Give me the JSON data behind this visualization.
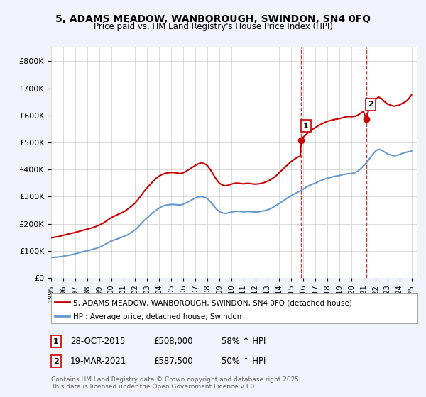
{
  "title_line1": "5, ADAMS MEADOW, WANBOROUGH, SWINDON, SN4 0FQ",
  "title_line2": "Price paid vs. HM Land Registry's House Price Index (HPI)",
  "ylabel": "",
  "background_color": "#f0f4fa",
  "plot_bg_color": "#ffffff",
  "red_color": "#cc0000",
  "blue_color": "#6699cc",
  "vline_color": "#cc0000",
  "annotation_bg": "#ffffff",
  "annotation_border": "#cc0000",
  "ytick_labels": [
    "£0",
    "£100K",
    "£200K",
    "£300K",
    "£400K",
    "£500K",
    "£600K",
    "£700K",
    "£800K"
  ],
  "ytick_values": [
    0,
    100000,
    200000,
    300000,
    400000,
    500000,
    600000,
    700000,
    800000
  ],
  "ylim": [
    0,
    850000
  ],
  "xlim_start": 1995.0,
  "xlim_end": 2025.5,
  "legend_label_red": "5, ADAMS MEADOW, WANBOROUGH, SWINDON, SN4 0FQ (detached house)",
  "legend_label_blue": "HPI: Average price, detached house, Swindon",
  "purchase1_label": "1",
  "purchase1_date": "28-OCT-2015",
  "purchase1_price": "£508,000",
  "purchase1_hpi": "58% ↑ HPI",
  "purchase1_x": 2015.83,
  "purchase1_y": 508000,
  "purchase2_label": "2",
  "purchase2_date": "19-MAR-2021",
  "purchase2_price": "£587,500",
  "purchase2_hpi": "50% ↑ HPI",
  "purchase2_x": 2021.22,
  "purchase2_y": 587500,
  "copyright_text": "Contains HM Land Registry data © Crown copyright and database right 2025.\nThis data is licensed under the Open Government Licence v3.0.",
  "hpi_x": [
    1995.0,
    1995.25,
    1995.5,
    1995.75,
    1996.0,
    1996.25,
    1996.5,
    1996.75,
    1997.0,
    1997.25,
    1997.5,
    1997.75,
    1998.0,
    1998.25,
    1998.5,
    1998.75,
    1999.0,
    1999.25,
    1999.5,
    1999.75,
    2000.0,
    2000.25,
    2000.5,
    2000.75,
    2001.0,
    2001.25,
    2001.5,
    2001.75,
    2002.0,
    2002.25,
    2002.5,
    2002.75,
    2003.0,
    2003.25,
    2003.5,
    2003.75,
    2004.0,
    2004.25,
    2004.5,
    2004.75,
    2005.0,
    2005.25,
    2005.5,
    2005.75,
    2006.0,
    2006.25,
    2006.5,
    2006.75,
    2007.0,
    2007.25,
    2007.5,
    2007.75,
    2008.0,
    2008.25,
    2008.5,
    2008.75,
    2009.0,
    2009.25,
    2009.5,
    2009.75,
    2010.0,
    2010.25,
    2010.5,
    2010.75,
    2011.0,
    2011.25,
    2011.5,
    2011.75,
    2012.0,
    2012.25,
    2012.5,
    2012.75,
    2013.0,
    2013.25,
    2013.5,
    2013.75,
    2014.0,
    2014.25,
    2014.5,
    2014.75,
    2015.0,
    2015.25,
    2015.5,
    2015.75,
    2016.0,
    2016.25,
    2016.5,
    2016.75,
    2017.0,
    2017.25,
    2017.5,
    2017.75,
    2018.0,
    2018.25,
    2018.5,
    2018.75,
    2019.0,
    2019.25,
    2019.5,
    2019.75,
    2020.0,
    2020.25,
    2020.5,
    2020.75,
    2021.0,
    2021.25,
    2021.5,
    2021.75,
    2022.0,
    2022.25,
    2022.5,
    2022.75,
    2023.0,
    2023.25,
    2023.5,
    2023.75,
    2024.0,
    2024.25,
    2024.5,
    2024.75,
    2025.0
  ],
  "hpi_y": [
    75000,
    76000,
    77000,
    78000,
    80000,
    82000,
    84000,
    86000,
    89000,
    92000,
    95000,
    98000,
    100000,
    103000,
    106000,
    109000,
    113000,
    118000,
    124000,
    130000,
    136000,
    140000,
    144000,
    148000,
    152000,
    157000,
    163000,
    170000,
    178000,
    188000,
    200000,
    212000,
    222000,
    232000,
    242000,
    250000,
    258000,
    264000,
    268000,
    270000,
    271000,
    271000,
    270000,
    269000,
    272000,
    277000,
    283000,
    289000,
    295000,
    299000,
    300000,
    298000,
    293000,
    282000,
    268000,
    255000,
    245000,
    240000,
    238000,
    240000,
    243000,
    245000,
    246000,
    245000,
    244000,
    245000,
    245000,
    244000,
    243000,
    244000,
    246000,
    248000,
    251000,
    255000,
    261000,
    268000,
    275000,
    282000,
    290000,
    297000,
    304000,
    310000,
    316000,
    321000,
    328000,
    335000,
    341000,
    346000,
    350000,
    355000,
    360000,
    364000,
    368000,
    371000,
    374000,
    376000,
    378000,
    381000,
    383000,
    385000,
    385000,
    388000,
    393000,
    402000,
    413000,
    425000,
    440000,
    455000,
    468000,
    475000,
    472000,
    465000,
    458000,
    454000,
    451000,
    452000,
    455000,
    460000,
    463000,
    466000,
    468000
  ],
  "red_x": [
    1995.0,
    1995.25,
    1995.5,
    1995.75,
    1996.0,
    1996.25,
    1996.5,
    1996.75,
    1997.0,
    1997.25,
    1997.5,
    1997.75,
    1998.0,
    1998.25,
    1998.5,
    1998.75,
    1999.0,
    1999.25,
    1999.5,
    1999.75,
    2000.0,
    2000.25,
    2000.5,
    2000.75,
    2001.0,
    2001.25,
    2001.5,
    2001.75,
    2002.0,
    2002.25,
    2002.5,
    2002.75,
    2003.0,
    2003.25,
    2003.5,
    2003.75,
    2004.0,
    2004.25,
    2004.5,
    2004.75,
    2005.0,
    2005.25,
    2005.5,
    2005.75,
    2006.0,
    2006.25,
    2006.5,
    2006.75,
    2007.0,
    2007.25,
    2007.5,
    2007.75,
    2008.0,
    2008.25,
    2008.5,
    2008.75,
    2009.0,
    2009.25,
    2009.5,
    2009.75,
    2010.0,
    2010.25,
    2010.5,
    2010.75,
    2011.0,
    2011.25,
    2011.5,
    2011.75,
    2012.0,
    2012.25,
    2012.5,
    2012.75,
    2013.0,
    2013.25,
    2013.5,
    2013.75,
    2014.0,
    2014.25,
    2014.5,
    2014.75,
    2015.0,
    2015.25,
    2015.5,
    2015.75,
    2015.83,
    2016.0,
    2016.25,
    2016.5,
    2016.75,
    2017.0,
    2017.25,
    2017.5,
    2017.75,
    2018.0,
    2018.25,
    2018.5,
    2018.75,
    2019.0,
    2019.25,
    2019.5,
    2019.75,
    2020.0,
    2020.25,
    2020.5,
    2020.75,
    2021.0,
    2021.22,
    2021.5,
    2021.75,
    2022.0,
    2022.25,
    2022.5,
    2022.75,
    2023.0,
    2023.25,
    2023.5,
    2023.75,
    2024.0,
    2024.25,
    2024.5,
    2024.75,
    2025.0
  ],
  "red_y": [
    148000,
    150000,
    152000,
    154000,
    157000,
    160000,
    163000,
    165000,
    168000,
    171000,
    174000,
    177000,
    180000,
    183000,
    186000,
    190000,
    195000,
    200000,
    207000,
    215000,
    222000,
    228000,
    233000,
    238000,
    243000,
    250000,
    258000,
    267000,
    277000,
    290000,
    305000,
    320000,
    333000,
    345000,
    357000,
    368000,
    376000,
    382000,
    386000,
    388000,
    389000,
    389000,
    387000,
    385000,
    388000,
    394000,
    401000,
    408000,
    415000,
    421000,
    425000,
    422000,
    415000,
    400000,
    382000,
    364000,
    350000,
    343000,
    340000,
    342000,
    346000,
    349000,
    350000,
    349000,
    347000,
    349000,
    349000,
    347000,
    346000,
    347000,
    349000,
    352000,
    357000,
    362000,
    369000,
    378000,
    389000,
    399000,
    410000,
    420000,
    430000,
    438000,
    445000,
    450000,
    508000,
    520000,
    530000,
    540000,
    548000,
    555000,
    562000,
    568000,
    573000,
    578000,
    581000,
    584000,
    586000,
    588000,
    591000,
    594000,
    596000,
    595000,
    596000,
    600000,
    607000,
    615000,
    587500,
    630000,
    645000,
    658000,
    668000,
    662000,
    651000,
    642000,
    638000,
    634000,
    636000,
    638000,
    645000,
    650000,
    660000,
    675000
  ]
}
